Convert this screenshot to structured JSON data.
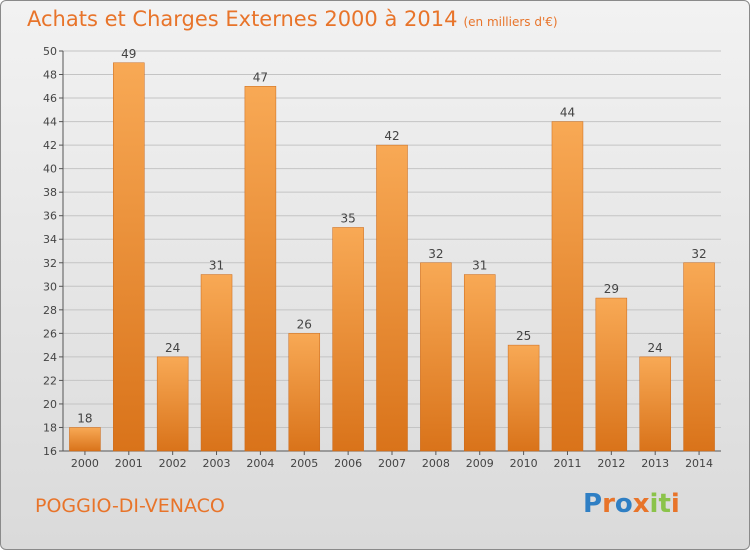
{
  "header": {
    "title": "Achats et Charges Externes 2000 à 2014",
    "subtitle": "(en milliers d'€)"
  },
  "footer": {
    "commune": "POGGIO-DI-VENACO",
    "logo_text": "Proxiti"
  },
  "colors": {
    "accent": "#e8742a",
    "bar_light": "#f8a955",
    "bar_dark": "#d9731a",
    "logo": [
      "#2f7fc4",
      "#e8742a",
      "#2f7fc4",
      "#e8742a",
      "#8bc34a",
      "#8bc34a",
      "#e8742a"
    ]
  },
  "chart_data": {
    "type": "bar",
    "categories": [
      "2000",
      "2001",
      "2002",
      "2003",
      "2004",
      "2005",
      "2006",
      "2007",
      "2008",
      "2009",
      "2010",
      "2011",
      "2012",
      "2013",
      "2014"
    ],
    "values": [
      18,
      49,
      24,
      31,
      47,
      26,
      35,
      42,
      32,
      31,
      25,
      44,
      29,
      24,
      32
    ],
    "ylim": [
      16,
      50
    ],
    "yticks": [
      16,
      18,
      20,
      22,
      24,
      26,
      28,
      30,
      32,
      34,
      36,
      38,
      40,
      42,
      44,
      46,
      48,
      50
    ],
    "grid": true,
    "data_labels": true
  }
}
